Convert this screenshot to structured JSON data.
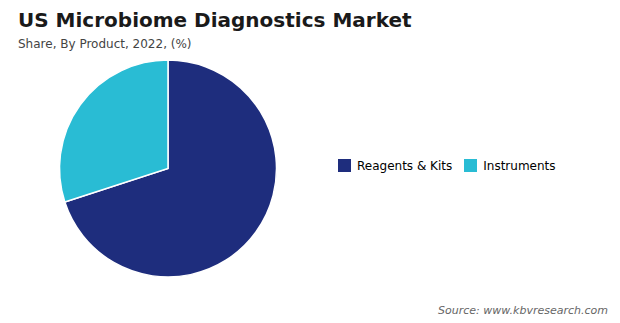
{
  "chart_data": {
    "type": "pie",
    "title": "US Microbiome Diagnostics  Market",
    "subtitle": "Share, By Product, 2022, (%)",
    "categories": [
      "Reagents & Kits",
      "Instruments"
    ],
    "values": [
      70,
      30
    ],
    "colors": [
      "#1e2d7d",
      "#29bcd4"
    ],
    "legend": "right",
    "caption": "Source: www.kbvresearch.com"
  }
}
